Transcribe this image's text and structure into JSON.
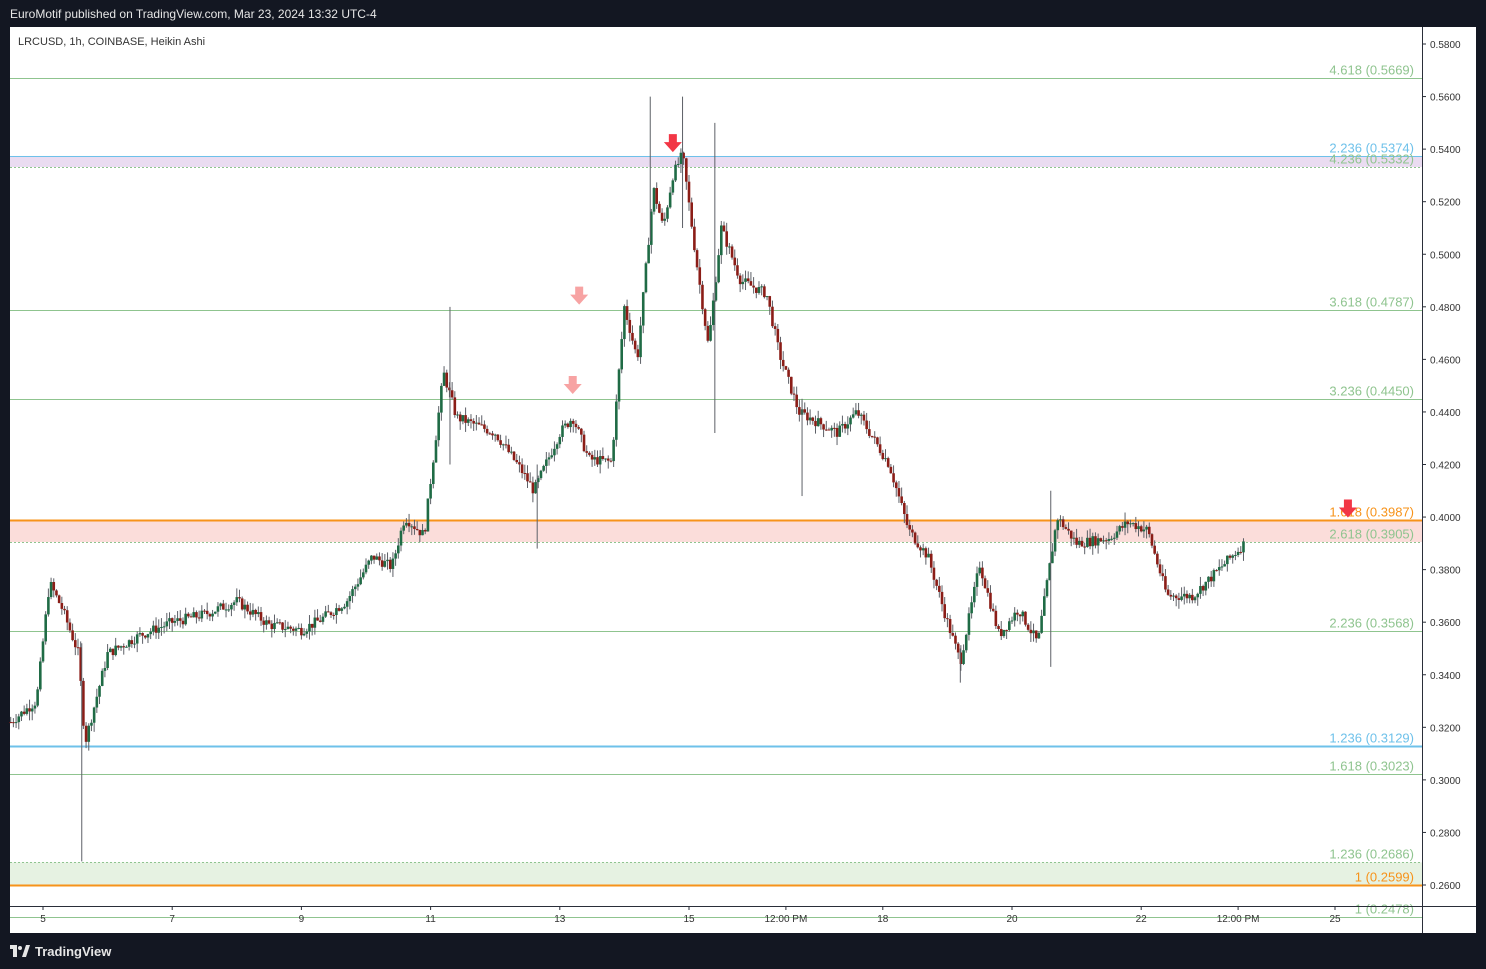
{
  "header": {
    "published_text": "EuroMotif published on TradingView.com, Mar 23, 2024 13:32 UTC-4"
  },
  "footer": {
    "brand": "TradingView",
    "brand_icon": "tradingview-logo-icon"
  },
  "colors": {
    "background": "#ffffff",
    "frame": "#131722",
    "bull_candle": "#1f6b45",
    "bear_candle": "#8b1d17",
    "wick": "#5d6067",
    "fib_green": "#8fc48f",
    "fib_orange": "#f7931a",
    "fib_blue": "#6ec1ea",
    "zone_pink": "#fbd9d6",
    "zone_green": "#e3f1df",
    "zone_purple": "#e8d8f0",
    "arrow_red": "#f23645",
    "arrow_pink": "#f7a3a3",
    "axis_text": "#333333"
  },
  "chart_data": {
    "type": "candlestick",
    "title": "LRCUSD, 1h, COINBASE, Heikin Ashi",
    "symbol": "LRCUSD",
    "interval": "1h",
    "exchange": "COINBASE",
    "chart_style": "Heikin Ashi",
    "ylim": [
      0.245,
      0.588
    ],
    "y_ticks": [
      "0.5800",
      "0.5600",
      "0.5400",
      "0.5200",
      "0.5000",
      "0.4800",
      "0.4600",
      "0.4400",
      "0.4200",
      "0.4000",
      "0.3800",
      "0.3600",
      "0.3400",
      "0.3200",
      "0.3000",
      "0.2800",
      "0.2600"
    ],
    "x_ticks": [
      {
        "label": "5",
        "day": 5
      },
      {
        "label": "7",
        "day": 7
      },
      {
        "label": "9",
        "day": 9
      },
      {
        "label": "11",
        "day": 11
      },
      {
        "label": "13",
        "day": 13
      },
      {
        "label": "15",
        "day": 15
      },
      {
        "label": "12:00 PM",
        "day": 16.5
      },
      {
        "label": "18",
        "day": 18
      },
      {
        "label": "20",
        "day": 20
      },
      {
        "label": "22",
        "day": 22
      },
      {
        "label": "12:00 PM",
        "day": 23.5
      },
      {
        "label": "25",
        "day": 25
      }
    ],
    "x_range": [
      4.5,
      26.4
    ],
    "series_path": [
      {
        "day": 4.5,
        "price": 0.322
      },
      {
        "day": 4.9,
        "price": 0.33
      },
      {
        "day": 5.1,
        "price": 0.375
      },
      {
        "day": 5.3,
        "price": 0.365
      },
      {
        "day": 5.55,
        "price": 0.348
      },
      {
        "day": 5.65,
        "price": 0.314
      },
      {
        "day": 6.0,
        "price": 0.348
      },
      {
        "day": 6.5,
        "price": 0.355
      },
      {
        "day": 7.0,
        "price": 0.36
      },
      {
        "day": 7.5,
        "price": 0.363
      },
      {
        "day": 8.0,
        "price": 0.368
      },
      {
        "day": 8.5,
        "price": 0.359
      },
      {
        "day": 9.0,
        "price": 0.357
      },
      {
        "day": 9.3,
        "price": 0.361
      },
      {
        "day": 9.7,
        "price": 0.368
      },
      {
        "day": 10.1,
        "price": 0.385
      },
      {
        "day": 10.4,
        "price": 0.381
      },
      {
        "day": 10.6,
        "price": 0.4
      },
      {
        "day": 10.9,
        "price": 0.393
      },
      {
        "day": 11.2,
        "price": 0.455
      },
      {
        "day": 11.4,
        "price": 0.438
      },
      {
        "day": 12.0,
        "price": 0.432
      },
      {
        "day": 12.4,
        "price": 0.418
      },
      {
        "day": 12.6,
        "price": 0.41
      },
      {
        "day": 13.0,
        "price": 0.432
      },
      {
        "day": 13.2,
        "price": 0.438
      },
      {
        "day": 13.45,
        "price": 0.422
      },
      {
        "day": 13.8,
        "price": 0.421
      },
      {
        "day": 14.0,
        "price": 0.48
      },
      {
        "day": 14.2,
        "price": 0.46
      },
      {
        "day": 14.45,
        "price": 0.525
      },
      {
        "day": 14.6,
        "price": 0.51
      },
      {
        "day": 14.75,
        "price": 0.53
      },
      {
        "day": 14.9,
        "price": 0.538
      },
      {
        "day": 15.1,
        "price": 0.5
      },
      {
        "day": 15.3,
        "price": 0.465
      },
      {
        "day": 15.5,
        "price": 0.51
      },
      {
        "day": 15.8,
        "price": 0.49
      },
      {
        "day": 16.2,
        "price": 0.485
      },
      {
        "day": 16.4,
        "price": 0.462
      },
      {
        "day": 16.7,
        "price": 0.44
      },
      {
        "day": 17.0,
        "price": 0.436
      },
      {
        "day": 17.3,
        "price": 0.432
      },
      {
        "day": 17.6,
        "price": 0.44
      },
      {
        "day": 17.9,
        "price": 0.428
      },
      {
        "day": 18.1,
        "price": 0.42
      },
      {
        "day": 18.4,
        "price": 0.395
      },
      {
        "day": 18.7,
        "price": 0.385
      },
      {
        "day": 19.0,
        "price": 0.36
      },
      {
        "day": 19.2,
        "price": 0.345
      },
      {
        "day": 19.5,
        "price": 0.382
      },
      {
        "day": 19.8,
        "price": 0.355
      },
      {
        "day": 20.1,
        "price": 0.365
      },
      {
        "day": 20.4,
        "price": 0.352
      },
      {
        "day": 20.7,
        "price": 0.4
      },
      {
        "day": 21.0,
        "price": 0.39
      },
      {
        "day": 21.5,
        "price": 0.392
      },
      {
        "day": 21.8,
        "price": 0.398
      },
      {
        "day": 22.1,
        "price": 0.395
      },
      {
        "day": 22.4,
        "price": 0.37
      },
      {
        "day": 22.8,
        "price": 0.37
      },
      {
        "day": 23.2,
        "price": 0.38
      },
      {
        "day": 23.6,
        "price": 0.39
      }
    ],
    "wick_spikes": [
      {
        "day": 5.6,
        "high": 0.352,
        "low": 0.269
      },
      {
        "day": 11.3,
        "high": 0.48,
        "low": 0.42
      },
      {
        "day": 12.65,
        "high": 0.42,
        "low": 0.388
      },
      {
        "day": 14.4,
        "high": 0.56,
        "low": 0.505
      },
      {
        "day": 14.9,
        "high": 0.56,
        "low": 0.51
      },
      {
        "day": 15.4,
        "high": 0.55,
        "low": 0.432
      },
      {
        "day": 16.75,
        "high": 0.445,
        "low": 0.408
      },
      {
        "day": 19.2,
        "high": 0.35,
        "low": 0.337
      },
      {
        "day": 20.6,
        "high": 0.41,
        "low": 0.343
      }
    ],
    "fib_levels": [
      {
        "label": "4.618 (0.5669)",
        "value": 0.5669,
        "color": "#8fc48f",
        "style": "solid"
      },
      {
        "label": "2.236 (0.5374)",
        "value": 0.5374,
        "color": "#6ec1ea",
        "style": "solid"
      },
      {
        "label": "4.236 (0.5332)",
        "value": 0.5332,
        "color": "#8fc48f",
        "style": "dotted"
      },
      {
        "label": "3.618 (0.4787)",
        "value": 0.4787,
        "color": "#8fc48f",
        "style": "solid"
      },
      {
        "label": "3.236 (0.4450)",
        "value": 0.445,
        "color": "#8fc48f",
        "style": "solid"
      },
      {
        "label": "1.618 (0.3987)",
        "value": 0.3987,
        "color": "#f7931a",
        "style": "thick"
      },
      {
        "label": "2.618 (0.3905)",
        "value": 0.3905,
        "color": "#8fc48f",
        "style": "dotted"
      },
      {
        "label": "2.236 (0.3568)",
        "value": 0.3568,
        "color": "#8fc48f",
        "style": "solid"
      },
      {
        "label": "1.236 (0.3129)",
        "value": 0.3129,
        "color": "#6ec1ea",
        "style": "thick"
      },
      {
        "label": "1.618 (0.3023)",
        "value": 0.3023,
        "color": "#8fc48f",
        "style": "solid"
      },
      {
        "label": "1.236 (0.2686)",
        "value": 0.2686,
        "color": "#8fc48f",
        "style": "dotted"
      },
      {
        "label": "1 (0.2599)",
        "value": 0.2599,
        "color": "#f7931a",
        "style": "thick"
      },
      {
        "label": "1 (0.2478)",
        "value": 0.2478,
        "color": "#8fc48f",
        "style": "solid"
      }
    ],
    "zones": [
      {
        "from": 0.5332,
        "to": 0.5374,
        "color": "#e8d8f0"
      },
      {
        "from": 0.3905,
        "to": 0.3987,
        "color": "#fbd9d6"
      },
      {
        "from": 0.2599,
        "to": 0.2686,
        "color": "#e3f1df"
      }
    ],
    "arrows": [
      {
        "day": 13.2,
        "price": 0.4495,
        "color": "#f7a3a3",
        "direction": "down"
      },
      {
        "day": 13.3,
        "price": 0.4835,
        "color": "#f7a3a3",
        "direction": "down"
      },
      {
        "day": 14.75,
        "price": 0.5415,
        "color": "#f23645",
        "direction": "down"
      },
      {
        "day": 25.2,
        "price": 0.4025,
        "color": "#f23645",
        "direction": "down"
      }
    ],
    "grid": false,
    "legend": "none"
  }
}
